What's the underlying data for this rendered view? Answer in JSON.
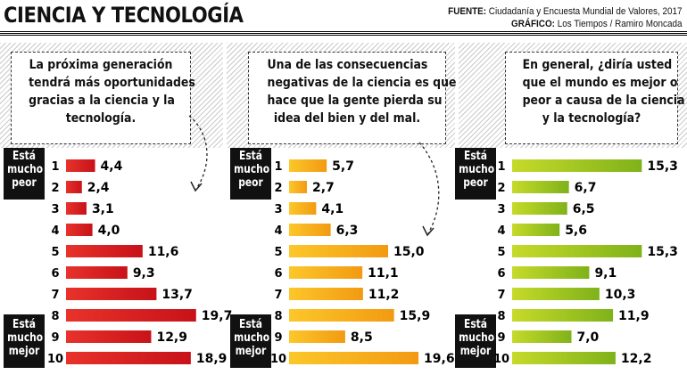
{
  "page": {
    "title": "CIENCIA Y TECNOLOGÍA",
    "source_label": "FUENTE:",
    "source_text": "Ciudadanía y Encuesta Mundial de Valores, 2017",
    "graphic_label": "GRÁFICO:",
    "graphic_text": "Los Tiempos / Ramiro Moncada",
    "top_label": [
      "Está",
      "mucho",
      "peor"
    ],
    "bottom_label": [
      "Está",
      "mucho",
      "mejor"
    ]
  },
  "colors": {
    "chart1": [
      "#e8322b",
      "#c71219"
    ],
    "chart2": [
      "#fcc72a",
      "#f29a12"
    ],
    "chart3": [
      "#c6da2a",
      "#7fb21a"
    ],
    "label_bg": "#111111",
    "hatch": "#c9c9c9"
  },
  "chart_data": [
    {
      "type": "bar",
      "title": "La próxima generación tendrá más oportunidades gracias a la ciencia y la tecnología.",
      "title_lines": [
        "La próxima generación",
        "tendrá más oportunidades",
        "gracias a la ciencia y la",
        "tecnología."
      ],
      "categories": [
        "1",
        "2",
        "3",
        "4",
        "5",
        "6",
        "7",
        "8",
        "9",
        "10"
      ],
      "values": [
        4.4,
        2.4,
        3.1,
        4.0,
        11.6,
        9.3,
        13.7,
        19.7,
        12.9,
        18.9
      ],
      "labels": [
        "4,4",
        "2,4",
        "3,1",
        "4,0",
        "11,6",
        "9,3",
        "13,7",
        "19,7",
        "12,9",
        "18,9"
      ]
    },
    {
      "type": "bar",
      "title": "Una de las consecuencias negativas de la ciencia es que hace que la gente pierda su idea del bien y del mal.",
      "title_lines": [
        "Una de las consecuencias",
        "negativas de la ciencia es que",
        "hace que la gente pierda su",
        "idea del bien y del mal."
      ],
      "categories": [
        "1",
        "2",
        "3",
        "4",
        "5",
        "6",
        "7",
        "8",
        "9",
        "10"
      ],
      "values": [
        5.7,
        2.7,
        4.1,
        6.3,
        15.0,
        11.1,
        11.2,
        15.9,
        8.5,
        19.6
      ],
      "labels": [
        "5,7",
        "2,7",
        "4,1",
        "6,3",
        "15,0",
        "11,1",
        "11,2",
        "15,9",
        "8,5",
        "19,6"
      ]
    },
    {
      "type": "bar",
      "title": "En general, ¿diría usted que el mundo es mejor o peor a causa de la ciencia y la tecnología?",
      "title_lines": [
        "En general, ¿diría usted",
        "que el mundo es mejor o",
        "peor a causa de la ciencia",
        "y la tecnología?"
      ],
      "categories": [
        "1",
        "2",
        "3",
        "4",
        "5",
        "6",
        "7",
        "8",
        "9",
        "10"
      ],
      "values": [
        15.3,
        6.7,
        6.5,
        5.6,
        15.3,
        9.1,
        10.3,
        11.9,
        7.0,
        12.2
      ],
      "labels": [
        "15,3",
        "6,7",
        "6,5",
        "5,6",
        "15,3",
        "9,1",
        "10,3",
        "11,9",
        "7,0",
        "12,2"
      ]
    }
  ]
}
